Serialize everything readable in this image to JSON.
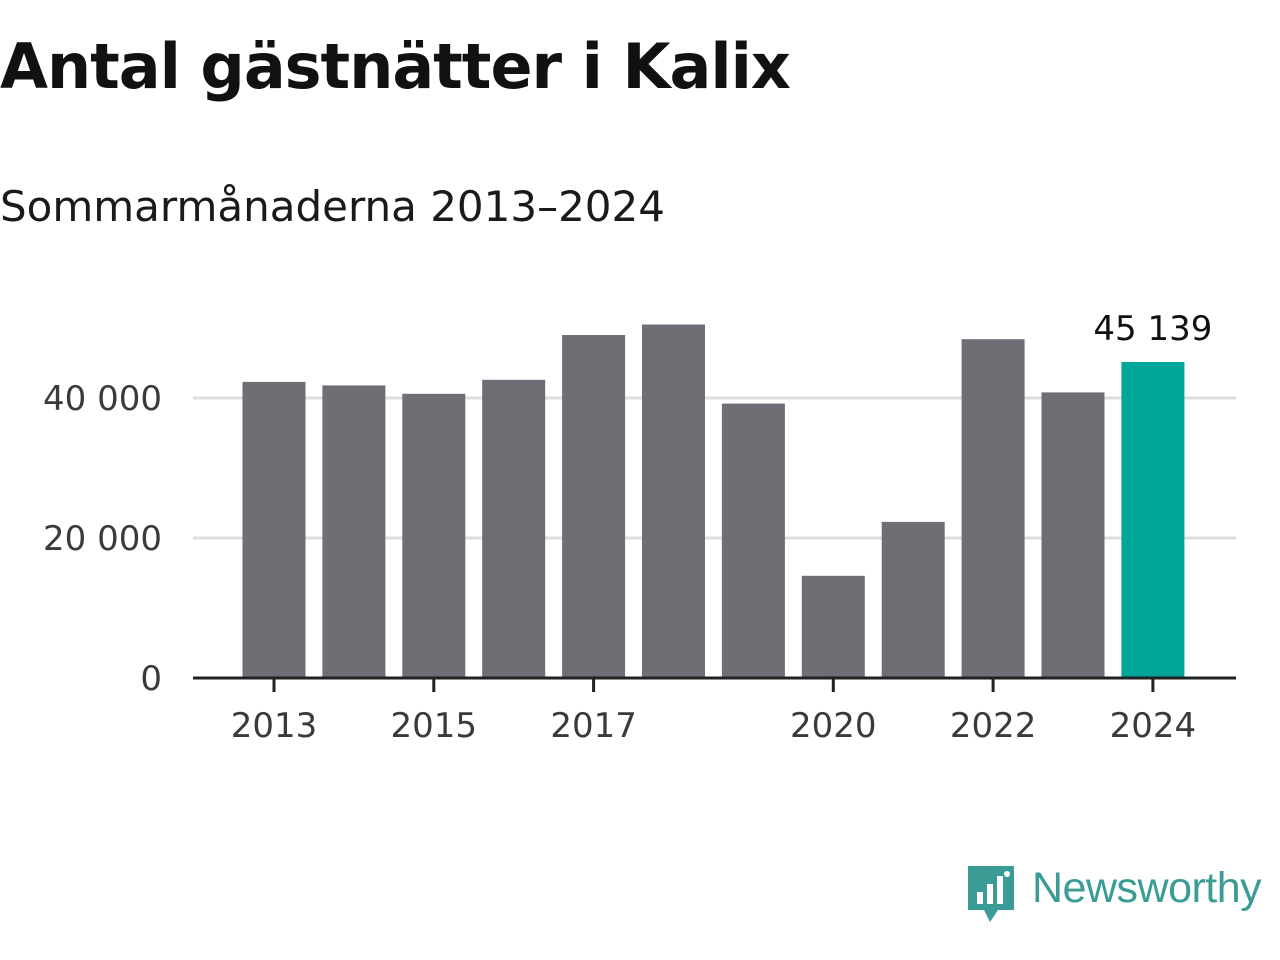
{
  "title": "Antal gästnätter i Kalix",
  "subtitle": "Sommarmånaderna 2013–2024",
  "brand": {
    "name": "Newsworthy",
    "icon": "bar-chart-speech-bubble-icon"
  },
  "colors": {
    "bar": "#6f6e74",
    "highlight": "#00a59a",
    "axis": "#222222",
    "grid": "#dddddd",
    "brand": "#3a9c94"
  },
  "chart_data": {
    "type": "bar",
    "title": "Antal gästnätter i Kalix",
    "subtitle": "Sommarmånaderna 2013–2024",
    "xlabel": "",
    "ylabel": "",
    "categories": [
      "2013",
      "2014",
      "2015",
      "2016",
      "2017",
      "2018",
      "2019",
      "2020",
      "2021",
      "2022",
      "2023",
      "2024"
    ],
    "values": [
      42300,
      41800,
      40600,
      42600,
      49000,
      50500,
      39200,
      14600,
      22300,
      48400,
      40800,
      45139
    ],
    "highlight_index": 11,
    "highlight_label": "45 139",
    "ylim": [
      0,
      55000
    ],
    "y_ticks": [
      0,
      20000,
      40000
    ],
    "y_tick_labels": [
      "0",
      "20 000",
      "40 000"
    ],
    "x_tick_labels": [
      "2013",
      "2015",
      "2017",
      "2020",
      "2022",
      "2024"
    ],
    "grid": true,
    "legend": "none"
  }
}
